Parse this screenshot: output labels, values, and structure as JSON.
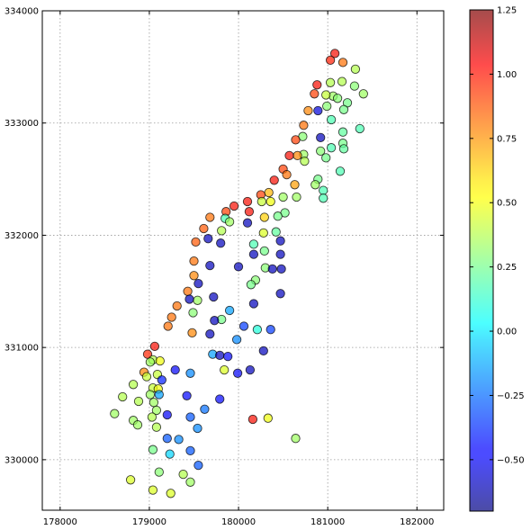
{
  "chart_data": {
    "type": "scatter",
    "title": "",
    "xlabel": "",
    "ylabel": "",
    "xlim": [
      177800,
      182300
    ],
    "ylim": [
      329550,
      334000
    ],
    "xticks": [
      178000,
      179000,
      180000,
      181000,
      182000
    ],
    "xtick_labels": [
      "178000",
      "179000",
      "180000",
      "181000",
      "182000"
    ],
    "yticks": [
      330000,
      331000,
      332000,
      333000,
      334000
    ],
    "ytick_labels": [
      "330000",
      "331000",
      "332000",
      "333000",
      "334000"
    ],
    "grid": true,
    "marker_alpha": 0.7,
    "colorbar": {
      "colormap": "jet",
      "vmin": -0.7,
      "vmax": 1.25,
      "ticks": [
        -0.5,
        -0.25,
        0.0,
        0.25,
        0.5,
        0.75,
        1.0,
        1.25
      ],
      "tick_labels": [
        "−0.50",
        "−0.25",
        "0.00",
        "0.25",
        "0.50",
        "0.75",
        "1.00",
        "1.25"
      ]
    },
    "points": [
      [
        181080,
        333620,
        1.05
      ],
      [
        181030,
        333560,
        1.02
      ],
      [
        181170,
        333540,
        0.85
      ],
      [
        181310,
        333480,
        0.4
      ],
      [
        181160,
        333370,
        0.4
      ],
      [
        181030,
        333360,
        0.4
      ],
      [
        181300,
        333330,
        0.3
      ],
      [
        181400,
        333260,
        0.35
      ],
      [
        180880,
        333340,
        1.05
      ],
      [
        180850,
        333260,
        0.95
      ],
      [
        181060,
        333240,
        0.35
      ],
      [
        180980,
        333250,
        0.45
      ],
      [
        181110,
        333220,
        0.3
      ],
      [
        181220,
        333180,
        0.25
      ],
      [
        181180,
        333120,
        0.25
      ],
      [
        180990,
        333150,
        0.3
      ],
      [
        180890,
        333110,
        -0.55
      ],
      [
        180780,
        333110,
        0.8
      ],
      [
        181040,
        333030,
        0.15
      ],
      [
        180730,
        332980,
        0.85
      ],
      [
        181170,
        332920,
        0.2
      ],
      [
        181360,
        332950,
        0.15
      ],
      [
        180720,
        332880,
        0.3
      ],
      [
        180920,
        332870,
        -0.6
      ],
      [
        180640,
        332850,
        0.95
      ],
      [
        181170,
        332820,
        0.25
      ],
      [
        181040,
        332780,
        0.15
      ],
      [
        181180,
        332770,
        0.2
      ],
      [
        180920,
        332750,
        0.3
      ],
      [
        180730,
        332720,
        0.35
      ],
      [
        180660,
        332710,
        0.8
      ],
      [
        180570,
        332710,
        1.05
      ],
      [
        180980,
        332690,
        0.25
      ],
      [
        180740,
        332660,
        0.4
      ],
      [
        180500,
        332590,
        0.95
      ],
      [
        180540,
        332540,
        0.85
      ],
      [
        181140,
        332570,
        0.15
      ],
      [
        180400,
        332490,
        1.05
      ],
      [
        180890,
        332500,
        0.25
      ],
      [
        180860,
        332450,
        0.35
      ],
      [
        180630,
        332450,
        0.75
      ],
      [
        180950,
        332400,
        0.15
      ],
      [
        180340,
        332380,
        0.7
      ],
      [
        180250,
        332360,
        0.95
      ],
      [
        180500,
        332340,
        0.35
      ],
      [
        180950,
        332330,
        0.15
      ],
      [
        180650,
        332340,
        0.35
      ],
      [
        180100,
        332300,
        1.05
      ],
      [
        180260,
        332300,
        0.45
      ],
      [
        180360,
        332300,
        0.55
      ],
      [
        179950,
        332260,
        1.05
      ],
      [
        180120,
        332210,
        1.05
      ],
      [
        179860,
        332210,
        0.95
      ],
      [
        180520,
        332200,
        0.25
      ],
      [
        180440,
        332170,
        0.25
      ],
      [
        179680,
        332160,
        0.85
      ],
      [
        180290,
        332160,
        0.65
      ],
      [
        179850,
        332150,
        0.15
      ],
      [
        179900,
        332120,
        0.35
      ],
      [
        180100,
        332110,
        -0.6
      ],
      [
        179610,
        332060,
        0.9
      ],
      [
        179810,
        332040,
        0.4
      ],
      [
        180280,
        332020,
        0.5
      ],
      [
        180420,
        332030,
        0.2
      ],
      [
        179660,
        331970,
        -0.6
      ],
      [
        179520,
        331940,
        0.9
      ],
      [
        179800,
        331930,
        -0.6
      ],
      [
        180470,
        331950,
        -0.6
      ],
      [
        180170,
        331920,
        0.15
      ],
      [
        180290,
        331860,
        0.25
      ],
      [
        180170,
        331830,
        -0.6
      ],
      [
        180470,
        331830,
        -0.6
      ],
      [
        179500,
        331770,
        0.85
      ],
      [
        180300,
        331710,
        0.3
      ],
      [
        180000,
        331720,
        -0.6
      ],
      [
        179680,
        331730,
        -0.6
      ],
      [
        180380,
        331700,
        -0.6
      ],
      [
        180480,
        331700,
        -0.6
      ],
      [
        179500,
        331640,
        0.8
      ],
      [
        180190,
        331600,
        0.3
      ],
      [
        179550,
        331570,
        -0.6
      ],
      [
        180140,
        331560,
        0.25
      ],
      [
        179430,
        331500,
        0.85
      ],
      [
        180470,
        331480,
        -0.6
      ],
      [
        179540,
        331420,
        0.35
      ],
      [
        179720,
        331450,
        -0.6
      ],
      [
        179450,
        331430,
        -0.6
      ],
      [
        180170,
        331390,
        -0.6
      ],
      [
        179310,
        331370,
        0.85
      ],
      [
        179490,
        331310,
        0.3
      ],
      [
        179900,
        331330,
        -0.15
      ],
      [
        179250,
        331270,
        0.85
      ],
      [
        179810,
        331250,
        0.25
      ],
      [
        179730,
        331240,
        -0.6
      ],
      [
        180060,
        331190,
        -0.35
      ],
      [
        180210,
        331160,
        0.05
      ],
      [
        180360,
        331160,
        -0.35
      ],
      [
        179210,
        331190,
        0.85
      ],
      [
        179480,
        331130,
        0.8
      ],
      [
        179680,
        331120,
        -0.6
      ],
      [
        179980,
        331070,
        -0.2
      ],
      [
        179060,
        331010,
        1.05
      ],
      [
        180280,
        330970,
        -0.6
      ],
      [
        178980,
        330940,
        1.0
      ],
      [
        179710,
        330940,
        -0.15
      ],
      [
        179790,
        330930,
        -0.6
      ],
      [
        179880,
        330920,
        -0.45
      ],
      [
        179040,
        330890,
        0.4
      ],
      [
        179120,
        330880,
        0.55
      ],
      [
        179010,
        330870,
        0.35
      ],
      [
        179290,
        330800,
        -0.5
      ],
      [
        180130,
        330800,
        -0.6
      ],
      [
        179840,
        330800,
        0.5
      ],
      [
        178940,
        330780,
        0.8
      ],
      [
        179090,
        330760,
        0.45
      ],
      [
        179460,
        330770,
        -0.2
      ],
      [
        179990,
        330770,
        -0.5
      ],
      [
        178970,
        330740,
        0.45
      ],
      [
        179140,
        330710,
        -0.4
      ],
      [
        178820,
        330670,
        0.4
      ],
      [
        179040,
        330640,
        0.45
      ],
      [
        179100,
        330630,
        0.55
      ],
      [
        179010,
        330580,
        0.35
      ],
      [
        179110,
        330580,
        -0.15
      ],
      [
        178700,
        330560,
        0.4
      ],
      [
        179420,
        330570,
        -0.45
      ],
      [
        179790,
        330540,
        -0.45
      ],
      [
        178880,
        330520,
        0.4
      ],
      [
        179050,
        330510,
        0.35
      ],
      [
        179620,
        330450,
        -0.25
      ],
      [
        179080,
        330440,
        0.35
      ],
      [
        178610,
        330410,
        0.35
      ],
      [
        179030,
        330380,
        0.4
      ],
      [
        179200,
        330400,
        -0.5
      ],
      [
        179460,
        330380,
        -0.3
      ],
      [
        180160,
        330360,
        1.05
      ],
      [
        180330,
        330370,
        0.55
      ],
      [
        178820,
        330350,
        0.35
      ],
      [
        179080,
        330290,
        0.4
      ],
      [
        178870,
        330310,
        0.35
      ],
      [
        179540,
        330280,
        -0.2
      ],
      [
        179200,
        330190,
        -0.3
      ],
      [
        179330,
        330180,
        -0.2
      ],
      [
        180640,
        330190,
        0.35
      ],
      [
        179040,
        330090,
        0.25
      ],
      [
        179460,
        330080,
        -0.3
      ],
      [
        179230,
        330050,
        -0.05
      ],
      [
        179550,
        329950,
        -0.3
      ],
      [
        179110,
        329890,
        0.3
      ],
      [
        179380,
        329870,
        0.4
      ],
      [
        179460,
        329800,
        0.35
      ],
      [
        178790,
        329820,
        0.5
      ],
      [
        179040,
        329730,
        0.5
      ],
      [
        179240,
        329700,
        0.5
      ]
    ]
  }
}
